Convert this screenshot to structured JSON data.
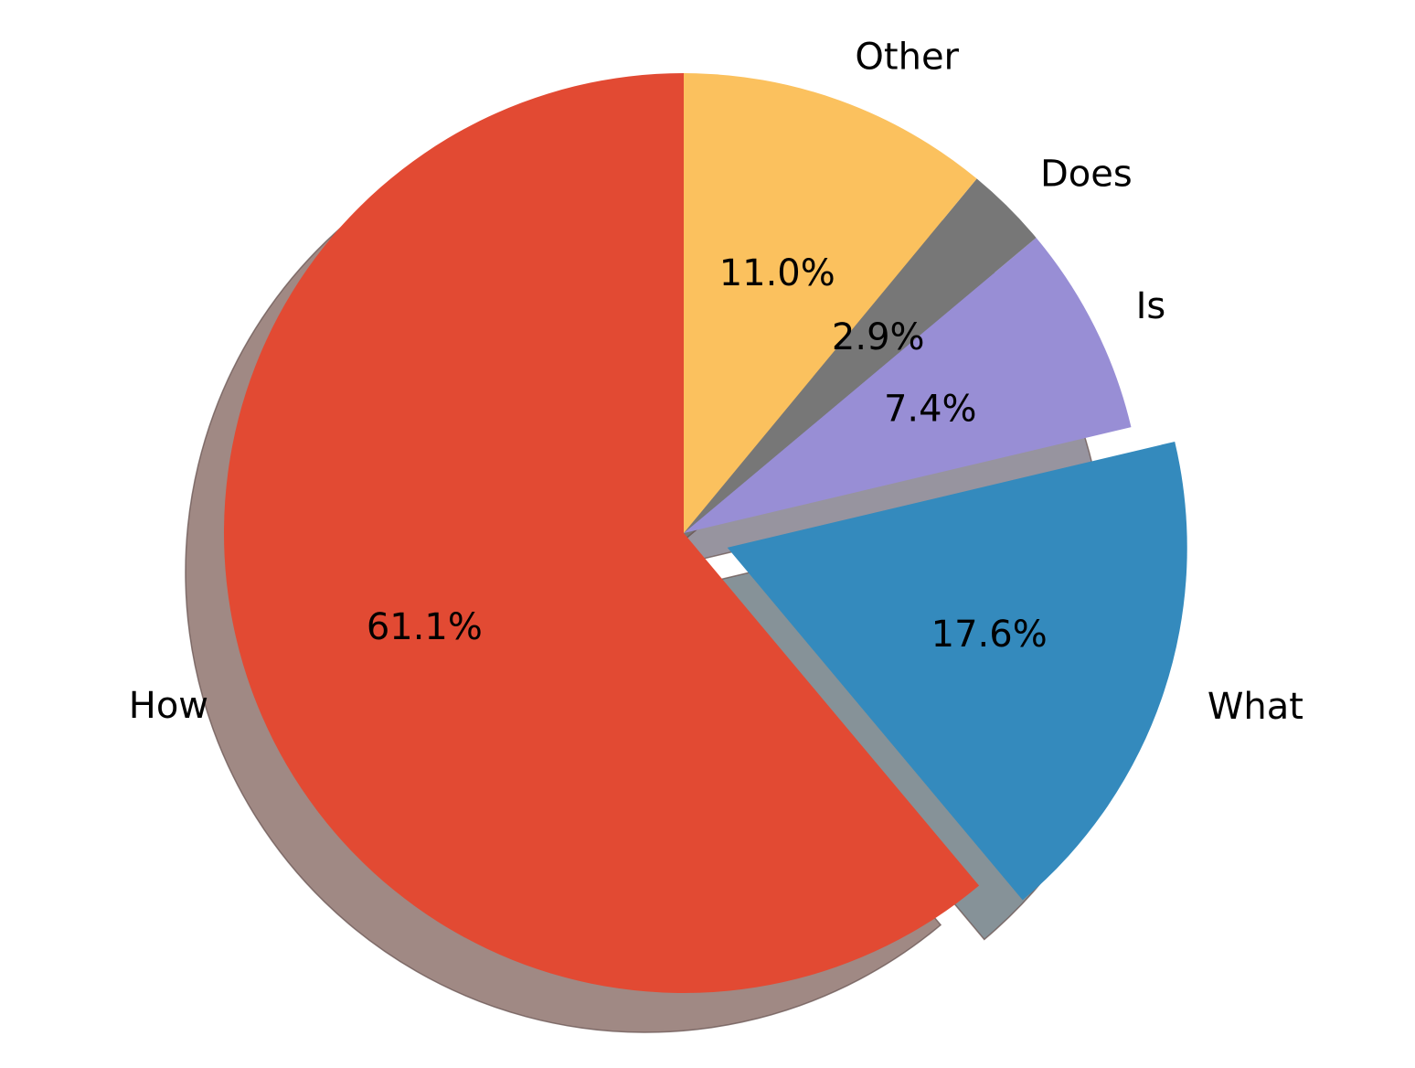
{
  "chart_data": {
    "type": "pie",
    "title": "",
    "start_angle_deg": 90,
    "direction": "counterclockwise",
    "shadow": true,
    "slices": [
      {
        "label": "How",
        "value": 61.1,
        "pct_label": "61.1%",
        "color": "#e24a33",
        "shadow_color": "#a08984",
        "explode": 0
      },
      {
        "label": "What",
        "value": 17.6,
        "pct_label": "17.6%",
        "color": "#348abd",
        "shadow_color": "#869298",
        "explode": 0.1
      },
      {
        "label": "Is",
        "value": 7.4,
        "pct_label": "7.4%",
        "color": "#988ed5",
        "shadow_color": "#97949f",
        "explode": 0
      },
      {
        "label": "Does",
        "value": 2.9,
        "pct_label": "2.9%",
        "color": "#777777",
        "shadow_color": "#777777",
        "explode": 0
      },
      {
        "label": "Other",
        "value": 11.0,
        "pct_label": "11.0%",
        "color": "#fbc15e",
        "shadow_color": "#a8a3a0",
        "explode": 0
      }
    ]
  }
}
